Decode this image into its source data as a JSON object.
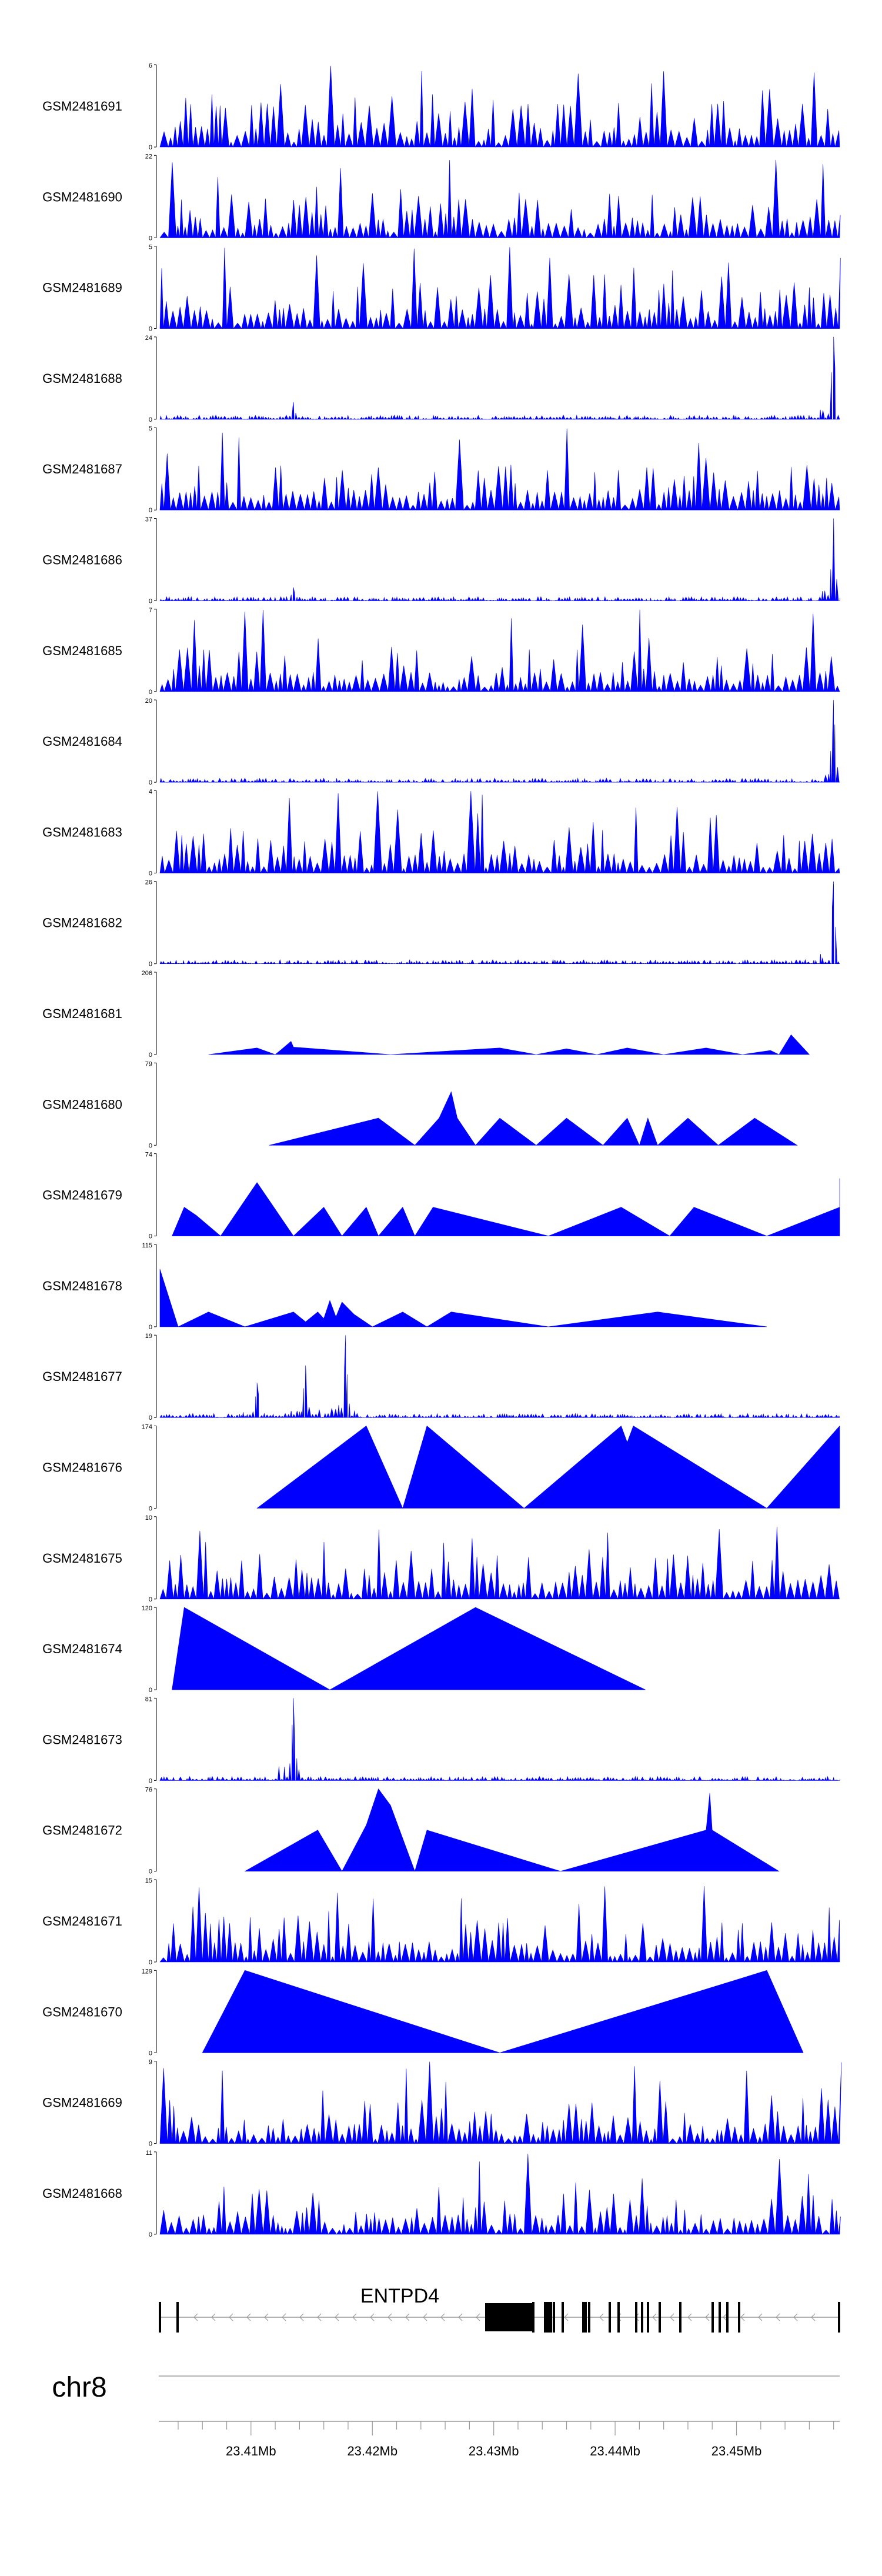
{
  "chart_data": {
    "type": "area",
    "title": "",
    "chromosome": "chr8",
    "gene": {
      "name": "ENTPD4",
      "strand": "-"
    },
    "x_axis": {
      "range_mb": [
        23.4025,
        23.4585
      ],
      "ticks": [
        "23.41Mb",
        "23.42Mb",
        "23.43Mb",
        "23.44Mb",
        "23.45Mb"
      ],
      "tick_values_mb": [
        23.41,
        23.42,
        23.43,
        23.44,
        23.45
      ]
    },
    "tracks": [
      {
        "name": "GSM2481691",
        "ymax": 6,
        "ymax_label": "6",
        "kind": "noise",
        "peaks": []
      },
      {
        "name": "GSM2481690",
        "ymax": 22,
        "ymax_label": "22",
        "kind": "noise",
        "peaks": []
      },
      {
        "name": "GSM2481689",
        "ymax": 5,
        "ymax_label": "5",
        "kind": "noise",
        "peaks": []
      },
      {
        "name": "GSM2481688",
        "ymax": 24,
        "ymax_label": "24",
        "kind": "spiky",
        "peaks": [
          [
            23.4135,
            5
          ],
          [
            23.458,
            24
          ]
        ]
      },
      {
        "name": "GSM2481687",
        "ymax": 5,
        "ymax_label": "5",
        "kind": "noise",
        "peaks": []
      },
      {
        "name": "GSM2481686",
        "ymax": 37,
        "ymax_label": "37",
        "kind": "spiky",
        "peaks": [
          [
            23.4135,
            6
          ],
          [
            23.458,
            37
          ]
        ]
      },
      {
        "name": "GSM2481685",
        "ymax": 7,
        "ymax_label": "7",
        "kind": "noise",
        "peaks": []
      },
      {
        "name": "GSM2481684",
        "ymax": 20,
        "ymax_label": "20",
        "kind": "spiky",
        "peaks": [
          [
            23.458,
            20
          ]
        ]
      },
      {
        "name": "GSM2481683",
        "ymax": 4,
        "ymax_label": "4",
        "kind": "noise",
        "peaks": []
      },
      {
        "name": "GSM2481682",
        "ymax": 26,
        "ymax_label": "26",
        "kind": "spiky",
        "peaks": [
          [
            23.458,
            26
          ]
        ]
      },
      {
        "name": "GSM2481681",
        "ymax": 206,
        "ymax_label": "206",
        "kind": "sparse",
        "peaks": []
      },
      {
        "name": "GSM2481680",
        "ymax": 79,
        "ymax_label": "79",
        "kind": "sparse",
        "peaks": []
      },
      {
        "name": "GSM2481679",
        "ymax": 74,
        "ymax_label": "74",
        "kind": "sparse",
        "peaks": []
      },
      {
        "name": "GSM2481678",
        "ymax": 115,
        "ymax_label": "115",
        "kind": "sparse",
        "peaks": []
      },
      {
        "name": "GSM2481677",
        "ymax": 19,
        "ymax_label": "19",
        "kind": "spiky",
        "peaks": [
          [
            23.4105,
            8
          ],
          [
            23.4145,
            12
          ],
          [
            23.4178,
            19
          ]
        ]
      },
      {
        "name": "GSM2481676",
        "ymax": 174,
        "ymax_label": "174",
        "kind": "sparse",
        "peaks": []
      },
      {
        "name": "GSM2481675",
        "ymax": 10,
        "ymax_label": "10",
        "kind": "noise",
        "peaks": []
      },
      {
        "name": "GSM2481674",
        "ymax": 120,
        "ymax_label": "120",
        "kind": "sparse",
        "peaks": []
      },
      {
        "name": "GSM2481673",
        "ymax": 81,
        "ymax_label": "81",
        "kind": "spiky",
        "peaks": [
          [
            23.4135,
            81
          ]
        ]
      },
      {
        "name": "GSM2481672",
        "ymax": 76,
        "ymax_label": "76",
        "kind": "sparse",
        "peaks": []
      },
      {
        "name": "GSM2481671",
        "ymax": 15,
        "ymax_label": "15",
        "kind": "noise",
        "peaks": []
      },
      {
        "name": "GSM2481670",
        "ymax": 129,
        "ymax_label": "129",
        "kind": "sparse",
        "peaks": []
      },
      {
        "name": "GSM2481669",
        "ymax": 9,
        "ymax_label": "9",
        "kind": "noise",
        "peaks": []
      },
      {
        "name": "GSM2481668",
        "ymax": 11,
        "ymax_label": "11",
        "kind": "noise",
        "peaks": []
      }
    ],
    "sparse_profiles": {
      "GSM2481681": [
        [
          23.4065,
          0
        ],
        [
          23.4105,
          0.08
        ],
        [
          23.412,
          0
        ],
        [
          23.4125,
          0.06
        ],
        [
          23.4133,
          0.16
        ],
        [
          23.4135,
          0.09
        ],
        [
          23.4215,
          0
        ],
        [
          23.4305,
          0.08
        ],
        [
          23.4335,
          0
        ],
        [
          23.436,
          0.07
        ],
        [
          23.4385,
          0
        ],
        [
          23.441,
          0.08
        ],
        [
          23.444,
          0
        ],
        [
          23.4475,
          0.08
        ],
        [
          23.4505,
          0
        ],
        [
          23.4528,
          0.05
        ],
        [
          23.4535,
          0
        ],
        [
          23.4545,
          0.24
        ],
        [
          23.456,
          0
        ]
      ],
      "GSM2481680": [
        [
          23.4115,
          0
        ],
        [
          23.4205,
          0.33
        ],
        [
          23.4235,
          0
        ],
        [
          23.4255,
          0.33
        ],
        [
          23.4265,
          0.65
        ],
        [
          23.427,
          0.33
        ],
        [
          23.4285,
          0
        ],
        [
          23.4305,
          0.33
        ],
        [
          23.4335,
          0
        ],
        [
          23.436,
          0.33
        ],
        [
          23.439,
          0
        ],
        [
          23.441,
          0.33
        ],
        [
          23.442,
          0
        ],
        [
          23.4427,
          0.33
        ],
        [
          23.4435,
          0
        ],
        [
          23.446,
          0.33
        ],
        [
          23.4485,
          0
        ],
        [
          23.4515,
          0.33
        ],
        [
          23.455,
          0
        ]
      ],
      "GSM2481679": [
        [
          23.4035,
          0
        ],
        [
          23.4045,
          0.35
        ],
        [
          23.4055,
          0.25
        ],
        [
          23.4075,
          0
        ],
        [
          23.4105,
          0.65
        ],
        [
          23.4135,
          0
        ],
        [
          23.416,
          0.35
        ],
        [
          23.4175,
          0
        ],
        [
          23.4195,
          0.35
        ],
        [
          23.4205,
          0
        ],
        [
          23.4225,
          0.35
        ],
        [
          23.4235,
          0
        ],
        [
          23.425,
          0.35
        ],
        [
          23.4345,
          0
        ],
        [
          23.4405,
          0.35
        ],
        [
          23.4445,
          0
        ],
        [
          23.4465,
          0.35
        ],
        [
          23.4525,
          0
        ],
        [
          23.4585,
          0.35
        ],
        [
          23.4585,
          0.7
        ]
      ],
      "GSM2481678": [
        [
          23.4025,
          0.7
        ],
        [
          23.404,
          0
        ],
        [
          23.4065,
          0.18
        ],
        [
          23.4095,
          0
        ],
        [
          23.4135,
          0.18
        ],
        [
          23.4145,
          0.06
        ],
        [
          23.4155,
          0.18
        ],
        [
          23.416,
          0.1
        ],
        [
          23.4165,
          0.32
        ],
        [
          23.417,
          0.12
        ],
        [
          23.4175,
          0.3
        ],
        [
          23.4185,
          0.15
        ],
        [
          23.42,
          0
        ],
        [
          23.4225,
          0.18
        ],
        [
          23.4245,
          0
        ],
        [
          23.4265,
          0.18
        ],
        [
          23.4345,
          0
        ],
        [
          23.4435,
          0.18
        ],
        [
          23.4525,
          0
        ]
      ],
      "GSM2481676": [
        [
          23.4105,
          0
        ],
        [
          23.4195,
          1.0
        ],
        [
          23.4225,
          0
        ],
        [
          23.4245,
          1.0
        ],
        [
          23.4325,
          0
        ],
        [
          23.4405,
          1.0
        ],
        [
          23.441,
          0.8
        ],
        [
          23.4415,
          1.0
        ],
        [
          23.4525,
          0
        ],
        [
          23.4585,
          1.0
        ],
        [
          23.4585,
          0
        ]
      ],
      "GSM2481674": [
        [
          23.4035,
          0
        ],
        [
          23.4045,
          1.0
        ],
        [
          23.4165,
          0
        ],
        [
          23.4285,
          1.0
        ],
        [
          23.4425,
          0
        ]
      ],
      "GSM2481672": [
        [
          23.4095,
          0
        ],
        [
          23.4155,
          0.5
        ],
        [
          23.4175,
          0
        ],
        [
          23.4195,
          0.56
        ],
        [
          23.4205,
          1.0
        ],
        [
          23.4215,
          0.8
        ],
        [
          23.4235,
          0
        ],
        [
          23.4245,
          0.5
        ],
        [
          23.4355,
          0
        ],
        [
          23.4475,
          0.5
        ],
        [
          23.4478,
          0.95
        ],
        [
          23.448,
          0.5
        ],
        [
          23.4535,
          0
        ]
      ],
      "GSM2481670": [
        [
          23.406,
          0
        ],
        [
          23.4095,
          1.0
        ],
        [
          23.4305,
          0
        ],
        [
          23.4525,
          1.0
        ],
        [
          23.4555,
          0
        ]
      ]
    },
    "fill_color": "#0000ff",
    "seed_base": 7
  }
}
